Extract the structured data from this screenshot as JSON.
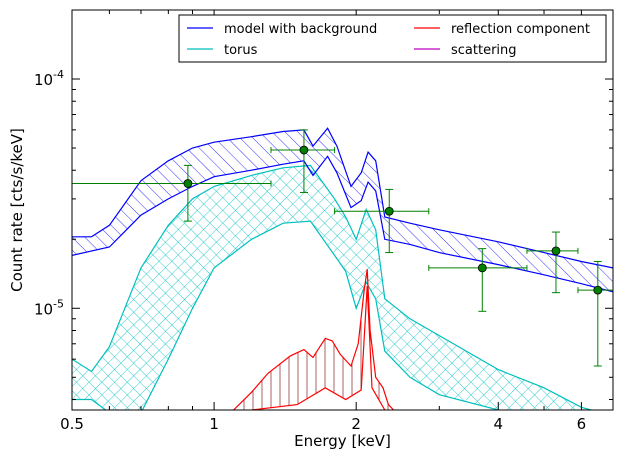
{
  "chart_data": {
    "type": "line",
    "xlabel": "Energy [keV]",
    "ylabel": "Count rate [cts/s/keV]",
    "x_scale": "log",
    "y_scale": "log",
    "xlim": [
      0.5,
      7.0
    ],
    "ylim": [
      3.6e-06,
      0.0002
    ],
    "grid": false,
    "legend_position": "top-right",
    "x_ticks": [
      {
        "value": 0.5,
        "label": "0.5"
      },
      {
        "value": 1,
        "label": "1"
      },
      {
        "value": 2,
        "label": "2"
      },
      {
        "value": 4,
        "label": "4"
      },
      {
        "value": 6,
        "label": "6"
      }
    ],
    "y_ticks": [
      {
        "value": 0.0001,
        "base": "10",
        "exp": "-4"
      },
      {
        "value": 1e-05,
        "base": "10",
        "exp": "-5"
      }
    ],
    "legend": [
      {
        "label": "model with background",
        "color": "#0000ff"
      },
      {
        "label": "reflection component",
        "color": "#ff0000"
      },
      {
        "label": "torus",
        "color": "#00bfbf"
      },
      {
        "label": "scattering",
        "color": "#bf00bf"
      }
    ],
    "series": [
      {
        "name": "model with background",
        "color": "#0000ff",
        "hatch": "diagonal",
        "upper": [
          [
            0.5,
            2.05e-05
          ],
          [
            0.55,
            2.05e-05
          ],
          [
            0.6,
            2.3e-05
          ],
          [
            0.7,
            3.6e-05
          ],
          [
            0.8,
            4.4e-05
          ],
          [
            0.9,
            5e-05
          ],
          [
            1.0,
            5.3e-05
          ],
          [
            1.2,
            5.6e-05
          ],
          [
            1.4,
            5.9e-05
          ],
          [
            1.55,
            6e-05
          ],
          [
            1.62,
            5.1e-05
          ],
          [
            1.74,
            6.1e-05
          ],
          [
            1.82,
            5.1e-05
          ],
          [
            1.95,
            3.4e-05
          ],
          [
            2.05,
            3.9e-05
          ],
          [
            2.12,
            4.8e-05
          ],
          [
            2.2,
            4.4e-05
          ],
          [
            2.3,
            2.5e-05
          ],
          [
            2.6,
            2.35e-05
          ],
          [
            3.0,
            2.2e-05
          ],
          [
            4.0,
            1.95e-05
          ],
          [
            5.0,
            1.75e-05
          ],
          [
            6.0,
            1.6e-05
          ],
          [
            7.0,
            1.5e-05
          ]
        ],
        "lower": [
          [
            0.5,
            1.7e-05
          ],
          [
            0.6,
            1.85e-05
          ],
          [
            0.7,
            2.55e-05
          ],
          [
            0.8,
            3e-05
          ],
          [
            0.9,
            3.4e-05
          ],
          [
            1.0,
            3.75e-05
          ],
          [
            1.2,
            4e-05
          ],
          [
            1.4,
            4.25e-05
          ],
          [
            1.55,
            4.4e-05
          ],
          [
            1.62,
            3.8e-05
          ],
          [
            1.74,
            4.6e-05
          ],
          [
            1.82,
            3.9e-05
          ],
          [
            1.95,
            2.75e-05
          ],
          [
            2.05,
            2.95e-05
          ],
          [
            2.12,
            3.55e-05
          ],
          [
            2.2,
            3.25e-05
          ],
          [
            2.3,
            2e-05
          ],
          [
            2.6,
            1.9e-05
          ],
          [
            3.0,
            1.75e-05
          ],
          [
            4.0,
            1.55e-05
          ],
          [
            5.0,
            1.4e-05
          ],
          [
            6.0,
            1.28e-05
          ],
          [
            7.0,
            1.18e-05
          ]
        ]
      },
      {
        "name": "torus",
        "color": "#00bfbf",
        "hatch": "cross",
        "upper": [
          [
            0.5,
            6e-06
          ],
          [
            0.55,
            5.3e-06
          ],
          [
            0.6,
            6.8e-06
          ],
          [
            0.7,
            1.5e-05
          ],
          [
            0.8,
            2.3e-05
          ],
          [
            0.9,
            3e-05
          ],
          [
            1.0,
            3.4e-05
          ],
          [
            1.2,
            3.8e-05
          ],
          [
            1.4,
            4.1e-05
          ],
          [
            1.6,
            4.2e-05
          ],
          [
            1.8,
            3e-05
          ],
          [
            1.9,
            2.5e-05
          ],
          [
            2.0,
            2e-05
          ],
          [
            2.1,
            2.7e-05
          ],
          [
            2.2,
            2.2e-05
          ],
          [
            2.3,
            1.1e-05
          ],
          [
            2.6,
            9e-06
          ],
          [
            3.0,
            7.6e-06
          ],
          [
            4.0,
            5.4e-06
          ],
          [
            5.0,
            4.5e-06
          ],
          [
            6.0,
            3.7e-06
          ],
          [
            7.0,
            3.4e-06
          ]
        ],
        "lower": [
          [
            0.5,
            4e-06
          ],
          [
            0.55,
            4e-06
          ],
          [
            0.6,
            3.5e-06
          ],
          [
            0.7,
            3.5e-06
          ],
          [
            0.8,
            6e-06
          ],
          [
            0.9,
            1e-05
          ],
          [
            1.0,
            1.5e-05
          ],
          [
            1.2,
            2e-05
          ],
          [
            1.4,
            2.35e-05
          ],
          [
            1.6,
            2.4e-05
          ],
          [
            1.8,
            1.7e-05
          ],
          [
            1.9,
            1.45e-05
          ],
          [
            2.0,
            1e-05
          ],
          [
            2.1,
            1.3e-05
          ],
          [
            2.2,
            1.1e-05
          ],
          [
            2.3,
            6.5e-06
          ],
          [
            2.6,
            5e-06
          ],
          [
            3.0,
            4.2e-06
          ],
          [
            4.0,
            3.6e-06
          ],
          [
            5.0,
            3.3e-06
          ],
          [
            7.0,
            3e-06
          ]
        ]
      },
      {
        "name": "reflection component",
        "color": "#ff0000",
        "hatch": "vertical",
        "upper": [
          [
            1.1,
            3.6e-06
          ],
          [
            1.2,
            4.3e-06
          ],
          [
            1.3,
            5.2e-06
          ],
          [
            1.45,
            6.2e-06
          ],
          [
            1.55,
            6.6e-06
          ],
          [
            1.62,
            6.1e-06
          ],
          [
            1.72,
            7.4e-06
          ],
          [
            1.78,
            7.2e-06
          ],
          [
            1.85,
            6.3e-06
          ],
          [
            1.95,
            5.6e-06
          ],
          [
            2.02,
            7e-06
          ],
          [
            2.08,
            1.2e-05
          ],
          [
            2.11,
            1.48e-05
          ],
          [
            2.14,
            8e-06
          ],
          [
            2.2,
            5e-06
          ],
          [
            2.28,
            4.5e-06
          ],
          [
            2.34,
            3.8e-06
          ],
          [
            2.4,
            3.6e-06
          ]
        ],
        "lower": [
          [
            1.2,
            3.6e-06
          ],
          [
            1.5,
            3.8e-06
          ],
          [
            1.72,
            4.5e-06
          ],
          [
            1.9,
            4e-06
          ],
          [
            2.05,
            4.4e-06
          ],
          [
            2.11,
            1.25e-05
          ],
          [
            2.16,
            4.5e-06
          ],
          [
            2.3,
            3.6e-06
          ]
        ]
      },
      {
        "name": "scattering",
        "color": "#bf00bf",
        "points": []
      }
    ],
    "data_points": {
      "color": "#008000",
      "points": [
        {
          "x": 0.88,
          "y": 3.5e-05,
          "xlo": 0.5,
          "xhi": 1.32,
          "ylo": 2.4e-05,
          "yhi": 4.2e-05
        },
        {
          "x": 1.55,
          "y": 4.9e-05,
          "xlo": 1.32,
          "xhi": 1.8,
          "ylo": 3.2e-05,
          "yhi": 6e-05
        },
        {
          "x": 2.35,
          "y": 2.65e-05,
          "xlo": 1.8,
          "xhi": 2.85,
          "ylo": 1.75e-05,
          "yhi": 3.3e-05
        },
        {
          "x": 3.7,
          "y": 1.5e-05,
          "xlo": 2.85,
          "xhi": 4.6,
          "ylo": 9.7e-06,
          "yhi": 1.82e-05
        },
        {
          "x": 5.3,
          "y": 1.78e-05,
          "xlo": 4.6,
          "xhi": 5.9,
          "ylo": 1.17e-05,
          "yhi": 2.15e-05
        },
        {
          "x": 6.5,
          "y": 1.2e-05,
          "xlo": 5.9,
          "xhi": 7.0,
          "ylo": 5.6e-06,
          "yhi": 1.6e-05
        }
      ]
    }
  }
}
